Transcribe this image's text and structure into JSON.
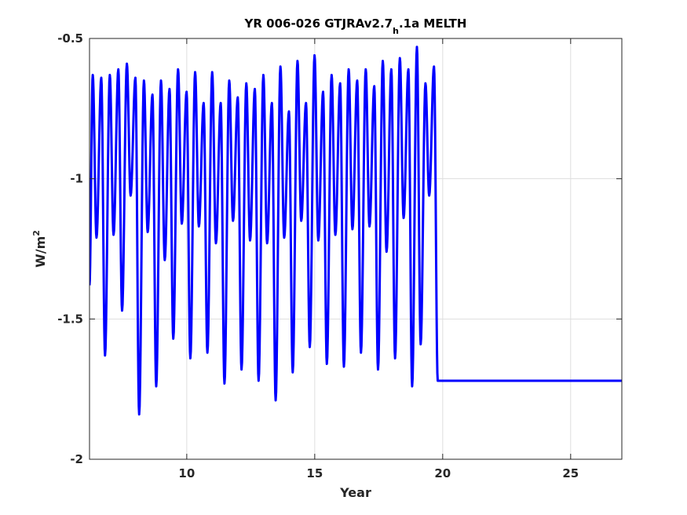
{
  "chart_data": {
    "type": "line",
    "title_main": "YR 006-026 GTJRAv2.7",
    "title_sub": "h",
    "title_rest": ".1a MELTH",
    "xlabel": "Year",
    "ylabel_main": "W/m",
    "ylabel_sup": "2",
    "xlim": [
      6.2,
      27.0
    ],
    "ylim": [
      -2,
      -0.5
    ],
    "y_reversed": true,
    "grid": true,
    "xticks": [
      10,
      15,
      20,
      25
    ],
    "xtick_labels": [
      "10",
      "15",
      "20",
      "25"
    ],
    "yticks": [
      -0.5,
      -1,
      -1.5,
      -2
    ],
    "ytick_labels": [
      "-0.5",
      "-1",
      "-1.5",
      "-2"
    ],
    "line_color": "#0000ff",
    "series": [
      {
        "cycles_per_year": 3,
        "start_value": -1.38,
        "end_value": -1.72,
        "cycles": [
          {
            "peak": -0.63,
            "mid": -1.21
          },
          {
            "peak": -0.64,
            "mid": -1.63
          },
          {
            "peak": -0.63,
            "mid": -1.2
          },
          {
            "peak": -0.61,
            "mid": -1.47
          },
          {
            "peak": -0.59,
            "mid": -1.06
          },
          {
            "peak": -0.64,
            "mid": -1.84
          },
          {
            "peak": -0.65,
            "mid": -1.19
          },
          {
            "peak": -0.7,
            "mid": -1.74
          },
          {
            "peak": -0.65,
            "mid": -1.29
          },
          {
            "peak": -0.68,
            "mid": -1.57
          },
          {
            "peak": -0.61,
            "mid": -1.16
          },
          {
            "peak": -0.69,
            "mid": -1.64
          },
          {
            "peak": -0.62,
            "mid": -1.17
          },
          {
            "peak": -0.73,
            "mid": -1.62
          },
          {
            "peak": -0.62,
            "mid": -1.23
          },
          {
            "peak": -0.73,
            "mid": -1.73
          },
          {
            "peak": -0.65,
            "mid": -1.15
          },
          {
            "peak": -0.71,
            "mid": -1.68
          },
          {
            "peak": -0.66,
            "mid": -1.22
          },
          {
            "peak": -0.68,
            "mid": -1.72
          },
          {
            "peak": -0.63,
            "mid": -1.23
          },
          {
            "peak": -0.73,
            "mid": -1.79
          },
          {
            "peak": -0.6,
            "mid": -1.21
          },
          {
            "peak": -0.76,
            "mid": -1.69
          },
          {
            "peak": -0.58,
            "mid": -1.15
          },
          {
            "peak": -0.73,
            "mid": -1.6
          },
          {
            "peak": -0.56,
            "mid": -1.22
          },
          {
            "peak": -0.69,
            "mid": -1.66
          },
          {
            "peak": -0.63,
            "mid": -1.2
          },
          {
            "peak": -0.66,
            "mid": -1.67
          },
          {
            "peak": -0.61,
            "mid": -1.18
          },
          {
            "peak": -0.65,
            "mid": -1.62
          },
          {
            "peak": -0.61,
            "mid": -1.17
          },
          {
            "peak": -0.67,
            "mid": -1.68
          },
          {
            "peak": -0.58,
            "mid": -1.26
          },
          {
            "peak": -0.61,
            "mid": -1.64
          },
          {
            "peak": -0.57,
            "mid": -1.14
          },
          {
            "peak": -0.61,
            "mid": -1.74
          },
          {
            "peak": -0.53,
            "mid": -1.59
          },
          {
            "peak": -0.66,
            "mid": -1.06
          },
          {
            "peak": -0.6,
            "mid": -1.72
          }
        ]
      }
    ]
  }
}
